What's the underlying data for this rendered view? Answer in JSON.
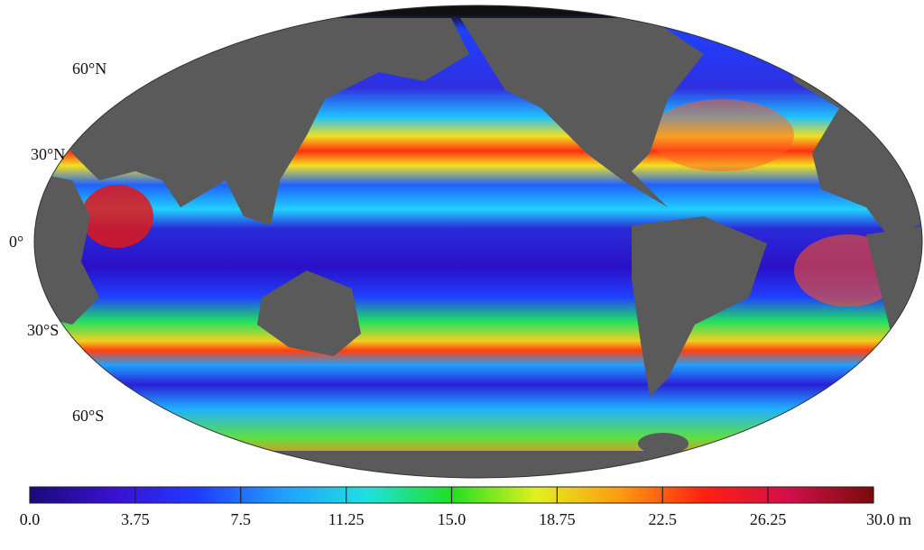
{
  "map": {
    "lat_labels": [
      "60°N",
      "30°N",
      "0°",
      "30°S",
      "60°S"
    ],
    "colorbar": {
      "range": [
        0,
        30
      ],
      "ticks": [
        {
          "value": 0,
          "label": "0.0"
        },
        3.75,
        7.5,
        11.25,
        {
          "value": 15,
          "label": "15.0"
        },
        18.75,
        22.5,
        26.25,
        {
          "value": 30,
          "label": "30.0 m"
        }
      ],
      "colors": [
        "#1a0a7a",
        "#3a10d0",
        "#1f3cff",
        "#1fa0ff",
        "#20e0e0",
        "#20e020",
        "#e0f020",
        "#ff9a10",
        "#ff2010",
        "#d0104a",
        "#7a0a0a"
      ]
    }
  }
}
